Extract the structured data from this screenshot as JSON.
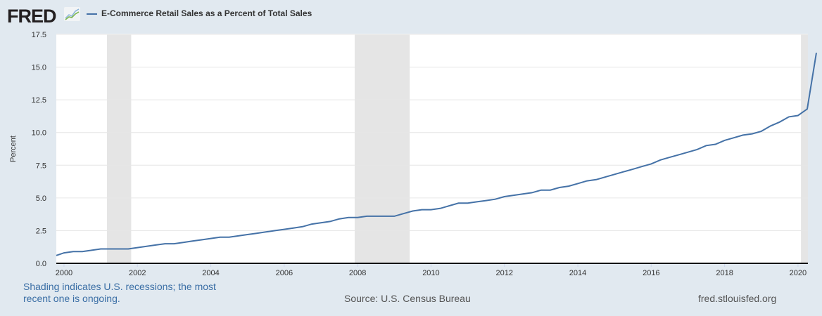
{
  "header": {
    "logo": "FRED",
    "logo_icon": "line-chart-icon"
  },
  "footer": {
    "note": "Shading indicates U.S. recessions; the most recent one is ongoing.",
    "source": "Source: U.S. Census Bureau",
    "site": "fred.stlouisfed.org"
  },
  "colors": {
    "line": "#4572a7",
    "recession": "#e5e5e5",
    "background": "#e1e9f0"
  },
  "chart_data": {
    "type": "line",
    "title": "",
    "ylabel": "Percent",
    "xlabel": "",
    "ylim": [
      0,
      17.5
    ],
    "xlim": [
      1999.79,
      2020.27
    ],
    "yticks": [
      "0.0",
      "2.5",
      "5.0",
      "7.5",
      "10.0",
      "12.5",
      "15.0",
      "17.5"
    ],
    "xticks": [
      "2000",
      "2002",
      "2004",
      "2006",
      "2008",
      "2010",
      "2012",
      "2014",
      "2016",
      "2018",
      "2020"
    ],
    "grid": true,
    "legend_position": "top-left",
    "recessions": [
      [
        2001.17,
        2001.83
      ],
      [
        2007.92,
        2009.42
      ],
      [
        2020.08,
        2020.27
      ]
    ],
    "series": [
      {
        "name": "E-Commerce Retail Sales as a Percent of Total Sales",
        "start": 1999.75,
        "frequency": "quarterly",
        "values": [
          0.6,
          0.8,
          0.9,
          0.9,
          1.0,
          1.1,
          1.1,
          1.1,
          1.1,
          1.2,
          1.3,
          1.4,
          1.5,
          1.5,
          1.6,
          1.7,
          1.8,
          1.9,
          2.0,
          2.0,
          2.1,
          2.2,
          2.3,
          2.4,
          2.5,
          2.6,
          2.7,
          2.8,
          3.0,
          3.1,
          3.2,
          3.4,
          3.5,
          3.5,
          3.6,
          3.6,
          3.6,
          3.6,
          3.8,
          4.0,
          4.1,
          4.1,
          4.2,
          4.4,
          4.6,
          4.6,
          4.7,
          4.8,
          4.9,
          5.1,
          5.2,
          5.3,
          5.4,
          5.6,
          5.6,
          5.8,
          5.9,
          6.1,
          6.3,
          6.4,
          6.6,
          6.8,
          7.0,
          7.2,
          7.4,
          7.6,
          7.9,
          8.1,
          8.3,
          8.5,
          8.7,
          9.0,
          9.1,
          9.4,
          9.6,
          9.8,
          9.9,
          10.1,
          10.5,
          10.8,
          11.2,
          11.3,
          11.8,
          16.1
        ]
      }
    ]
  }
}
